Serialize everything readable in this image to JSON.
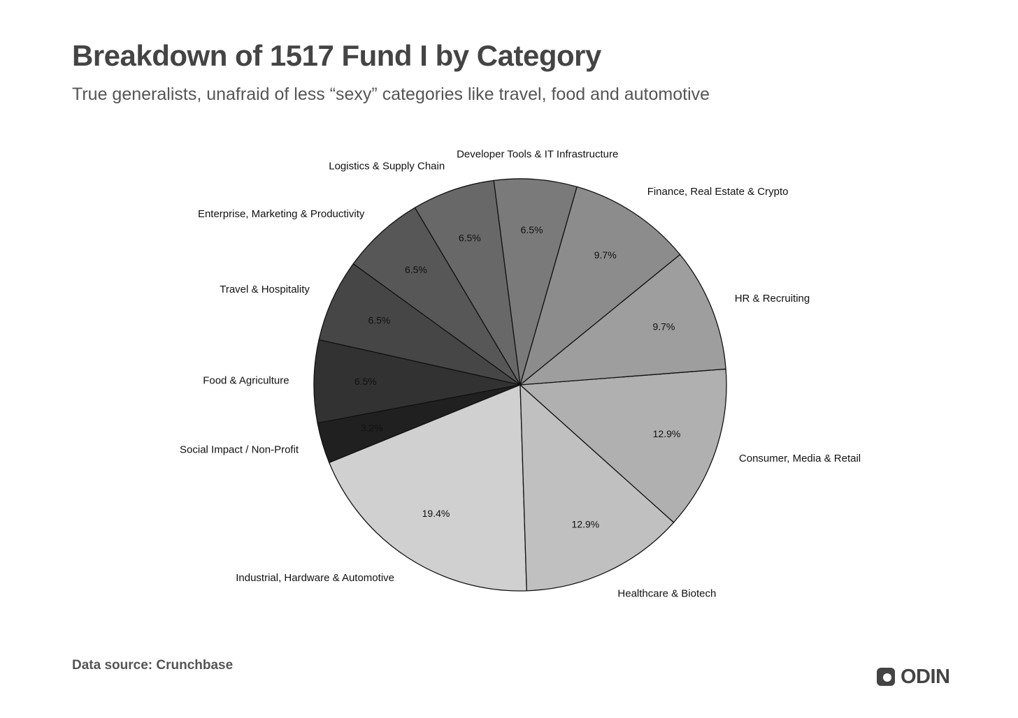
{
  "header": {
    "title": "Breakdown of 1517 Fund I by Category",
    "subtitle": "True generalists, unafraid of less “sexy” categories like travel, food and automotive"
  },
  "footer": {
    "source": "Data source: Crunchbase",
    "brand": "ODIN"
  },
  "chart_data": {
    "type": "pie",
    "title": "Breakdown of 1517 Fund I by Category",
    "subtitle": "True generalists, unafraid of less “sexy” categories like travel, food and automotive",
    "start_angle_deg": 120.7,
    "direction": "counterclockwise",
    "slices": [
      {
        "label": "Enterprise, Marketing & Productivity",
        "value": 6.5,
        "value_label": "6.5%",
        "color": "#575757"
      },
      {
        "label": "Travel & Hospitality",
        "value": 6.5,
        "value_label": "6.5%",
        "color": "#464646"
      },
      {
        "label": "Food & Agriculture",
        "value": 6.5,
        "value_label": "6.5%",
        "color": "#323232"
      },
      {
        "label": "Social Impact / Non-Profit",
        "value": 3.2,
        "value_label": "3.2%",
        "color": "#202020"
      },
      {
        "label": "Industrial, Hardware & Automotive",
        "value": 19.4,
        "value_label": "19.4%",
        "color": "#d0d0d0"
      },
      {
        "label": "Healthcare & Biotech",
        "value": 12.9,
        "value_label": "12.9%",
        "color": "#c0c0c0"
      },
      {
        "label": "Consumer, Media & Retail",
        "value": 12.9,
        "value_label": "12.9%",
        "color": "#b0b0b0"
      },
      {
        "label": "HR & Recruiting",
        "value": 9.7,
        "value_label": "9.7%",
        "color": "#9e9e9e"
      },
      {
        "label": "Finance, Real Estate & Crypto",
        "value": 9.7,
        "value_label": "9.7%",
        "color": "#8c8c8c"
      },
      {
        "label": "Developer Tools & IT Infrastructure",
        "value": 6.5,
        "value_label": "6.5%",
        "color": "#7a7a7a"
      },
      {
        "label": "Logistics & Supply Chain",
        "value": 6.5,
        "value_label": "6.5%",
        "color": "#686868"
      }
    ]
  }
}
